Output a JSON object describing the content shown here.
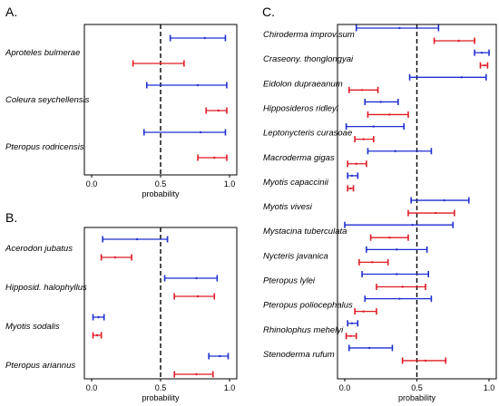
{
  "panel_labels": {
    "a": "A.",
    "b": "B.",
    "c": "C."
  },
  "colors": {
    "blue": "#1f2fd0",
    "red": "#e01b24",
    "dash": "#000000"
  },
  "chart_data": [
    {
      "type": "scatter",
      "panel": "A.",
      "xlabel": "probability",
      "xlim": [
        0,
        1
      ],
      "xticks": [
        "0.0",
        "0.5",
        "1.0"
      ],
      "reference_line": 0.5,
      "species": [
        "Aproteles bulmerae",
        "Coleura seychellensis",
        "Pteropus rodricensis"
      ],
      "series": [
        {
          "color": "blue",
          "points": [
            {
              "species": "Aproteles bulmerae",
              "center": 0.82,
              "low": 0.57,
              "high": 0.97
            },
            {
              "species": "Coleura seychellensis",
              "center": 0.77,
              "low": 0.4,
              "high": 0.98
            },
            {
              "species": "Pteropus rodricensis",
              "center": 0.79,
              "low": 0.38,
              "high": 0.97
            }
          ]
        },
        {
          "color": "red",
          "points": [
            {
              "species": "Aproteles bulmerae",
              "center": 0.5,
              "low": 0.3,
              "high": 0.67
            },
            {
              "species": "Coleura seychellensis",
              "center": 0.92,
              "low": 0.83,
              "high": 0.98
            },
            {
              "species": "Pteropus rodricensis",
              "center": 0.89,
              "low": 0.77,
              "high": 0.98
            }
          ]
        }
      ]
    },
    {
      "type": "scatter",
      "panel": "B.",
      "xlabel": "probability",
      "xlim": [
        0,
        1
      ],
      "xticks": [
        "0.0",
        "0.5",
        "1.0"
      ],
      "reference_line": 0.5,
      "species": [
        "Acerodon jubatus",
        "Hipposid. halophyllus",
        "Myotis sodalis",
        "Pteropus ariannus"
      ],
      "series": [
        {
          "color": "blue",
          "points": [
            {
              "species": "Acerodon jubatus",
              "center": 0.33,
              "low": 0.08,
              "high": 0.55
            },
            {
              "species": "Hipposid. halophyllus",
              "center": 0.76,
              "low": 0.53,
              "high": 0.91
            },
            {
              "species": "Myotis sodalis",
              "center": 0.05,
              "low": 0.01,
              "high": 0.09
            },
            {
              "species": "Pteropus ariannus",
              "center": 0.93,
              "low": 0.85,
              "high": 0.99
            }
          ]
        },
        {
          "color": "red",
          "points": [
            {
              "species": "Acerodon jubatus",
              "center": 0.17,
              "low": 0.07,
              "high": 0.29
            },
            {
              "species": "Hipposid. halophyllus",
              "center": 0.77,
              "low": 0.6,
              "high": 0.89
            },
            {
              "species": "Myotis sodalis",
              "center": 0.04,
              "low": 0.01,
              "high": 0.07
            },
            {
              "species": "Pteropus ariannus",
              "center": 0.76,
              "low": 0.6,
              "high": 0.88
            }
          ]
        }
      ]
    },
    {
      "type": "scatter",
      "panel": "C.",
      "xlabel": "probability",
      "xlim": [
        0,
        1
      ],
      "xticks": [
        "0.0",
        "0.5",
        "1.0"
      ],
      "reference_line": 0.5,
      "species": [
        "Chiroderma improvisum",
        "Craseony. thonglongyai",
        "Eidolon dupraeanum",
        "Hipposideros ridleyi",
        "Leptonycteris curasoae",
        "Macroderma gigas",
        "Myotis capaccinii",
        "Myotis vivesi",
        "Mystacina tuberculata",
        "Nycteris javanica",
        "Pteropus lylei",
        "Pteropus poliocephalus",
        "Rhinolophus mehelyi",
        "Stenoderma rufum"
      ],
      "series": [
        {
          "color": "blue",
          "points": [
            {
              "species": "Chiroderma improvisum",
              "center": 0.38,
              "low": 0.08,
              "high": 0.65
            },
            {
              "species": "Craseony. thonglongyai",
              "center": 0.95,
              "low": 0.9,
              "high": 1.0
            },
            {
              "species": "Eidolon dupraeanum",
              "center": 0.81,
              "low": 0.45,
              "high": 0.98
            },
            {
              "species": "Hipposideros ridleyi",
              "center": 0.25,
              "low": 0.14,
              "high": 0.37
            },
            {
              "species": "Leptonycteris curasoae",
              "center": 0.2,
              "low": 0.01,
              "high": 0.41
            },
            {
              "species": "Macroderma gigas",
              "center": 0.35,
              "low": 0.16,
              "high": 0.6
            },
            {
              "species": "Myotis capaccinii",
              "center": 0.05,
              "low": 0.02,
              "high": 0.09
            },
            {
              "species": "Myotis vivesi",
              "center": 0.69,
              "low": 0.46,
              "high": 0.86
            },
            {
              "species": "Mystacina tuberculata",
              "center": 0.47,
              "low": 0.0,
              "high": 0.75
            },
            {
              "species": "Nycteris javanica",
              "center": 0.36,
              "low": 0.15,
              "high": 0.57
            },
            {
              "species": "Pteropus lylei",
              "center": 0.36,
              "low": 0.12,
              "high": 0.58
            },
            {
              "species": "Pteropus poliocephalus",
              "center": 0.38,
              "low": 0.14,
              "high": 0.6
            },
            {
              "species": "Rhinolophus mehelyi",
              "center": 0.05,
              "low": 0.02,
              "high": 0.09
            },
            {
              "species": "Stenoderma rufum",
              "center": 0.17,
              "low": 0.03,
              "high": 0.33
            }
          ]
        },
        {
          "color": "red",
          "points": [
            {
              "species": "Chiroderma improvisum",
              "center": 0.79,
              "low": 0.62,
              "high": 0.9
            },
            {
              "species": "Craseony. thonglongyai",
              "center": 0.97,
              "low": 0.94,
              "high": 0.99
            },
            {
              "species": "Eidolon dupraeanum",
              "center": 0.12,
              "low": 0.03,
              "high": 0.23
            },
            {
              "species": "Hipposideros ridleyi",
              "center": 0.31,
              "low": 0.16,
              "high": 0.44
            },
            {
              "species": "Leptonycteris curasoae",
              "center": 0.13,
              "low": 0.07,
              "high": 0.2
            },
            {
              "species": "Macroderma gigas",
              "center": 0.08,
              "low": 0.02,
              "high": 0.15
            },
            {
              "species": "Myotis capaccinii",
              "center": 0.04,
              "low": 0.02,
              "high": 0.06
            },
            {
              "species": "Myotis vivesi",
              "center": 0.63,
              "low": 0.44,
              "high": 0.76
            },
            {
              "species": "Mystacina tuberculata",
              "center": 0.31,
              "low": 0.18,
              "high": 0.44
            },
            {
              "species": "Nycteris javanica",
              "center": 0.19,
              "low": 0.1,
              "high": 0.3
            },
            {
              "species": "Pteropus lylei",
              "center": 0.4,
              "low": 0.22,
              "high": 0.56
            },
            {
              "species": "Pteropus poliocephalus",
              "center": 0.13,
              "low": 0.07,
              "high": 0.22
            },
            {
              "species": "Rhinolophus mehelyi",
              "center": 0.04,
              "low": 0.01,
              "high": 0.08
            },
            {
              "species": "Stenoderma rufum",
              "center": 0.56,
              "low": 0.4,
              "high": 0.7
            }
          ]
        }
      ]
    }
  ]
}
